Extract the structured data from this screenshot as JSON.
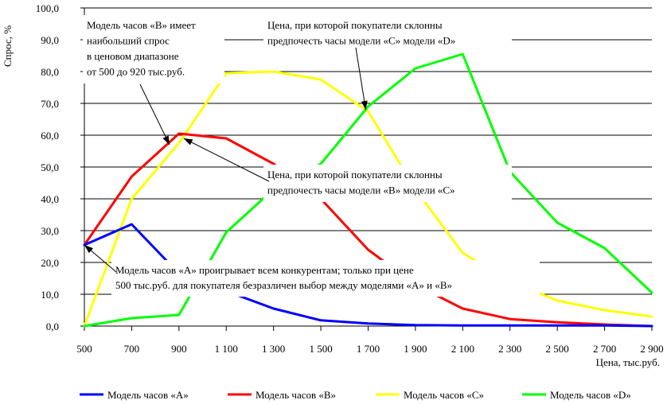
{
  "chart_data": {
    "type": "line",
    "title": "",
    "ylabel": "Спрос, %",
    "xlabel": "Цена, тыс.руб.",
    "x": [
      500,
      700,
      900,
      1100,
      1300,
      1500,
      1700,
      1900,
      2100,
      2300,
      2500,
      2700,
      2900
    ],
    "x_tick_labels": [
      "500",
      "700",
      "900",
      "1 100",
      "1 300",
      "1 500",
      "1 700",
      "1 900",
      "2 100",
      "2 300",
      "2 500",
      "2 700",
      "2 900"
    ],
    "y_tick_labels": [
      "0,0",
      "10,0",
      "20,0",
      "30,0",
      "40,0",
      "50,0",
      "60,0",
      "70,0",
      "80,0",
      "90,0",
      "100,0"
    ],
    "xlim": [
      500,
      2900
    ],
    "ylim": [
      0,
      100
    ],
    "grid": "horizontal",
    "legend_position": "bottom",
    "series": [
      {
        "name": "Модель часов «А»",
        "color": "#0000ff",
        "values": [
          25.5,
          32,
          16.5,
          11,
          5.5,
          1.8,
          0.8,
          0.3,
          0.2,
          0.2,
          0.2,
          0.2,
          0
        ]
      },
      {
        "name": "Модель часов «В»",
        "color": "#ff0000",
        "values": [
          25.5,
          47,
          60.5,
          59,
          51,
          40,
          24,
          13,
          5.5,
          2.2,
          1.2,
          0.5,
          0
        ]
      },
      {
        "name": "Модель часов «С»",
        "color": "#ffff00",
        "values": [
          0,
          40,
          57.5,
          79.5,
          80,
          77.5,
          67.5,
          43,
          23,
          14,
          8,
          5,
          3
        ]
      },
      {
        "name": "Модель часов «D»",
        "color": "#00ff00",
        "values": [
          0,
          2.5,
          3.5,
          29.5,
          43,
          51,
          69,
          81,
          85.5,
          48.5,
          32.5,
          24.5,
          10.5
        ]
      }
    ],
    "annotations": [
      {
        "lines": [
          "Модель часов «В» имеет",
          "наибольший спрос",
          "в ценовом диапазоне",
          "от 500 до 920 тыс.руб."
        ],
        "arrow_to": {
          "x": 860,
          "y": 57
        }
      },
      {
        "lines": [
          "Цена, при которой покупатели склонны",
          "предпочесть часы модели «С» модели «D»"
        ],
        "arrow_to": {
          "x": 1690,
          "y": 68
        }
      },
      {
        "lines": [
          "Цена, при которой покупатели склонны",
          "предпочесть часы модели «В» модели «С»"
        ],
        "arrow_to": {
          "x": 920,
          "y": 59
        }
      },
      {
        "lines": [
          "Модель часов «А» проигрывает всем конкурентам; только при цене",
          "500 тыс.руб. для покупателя безразличен выбор между моделями «А» и «В»"
        ],
        "arrow_to": {
          "x": 500,
          "y": 25.5
        }
      }
    ]
  }
}
